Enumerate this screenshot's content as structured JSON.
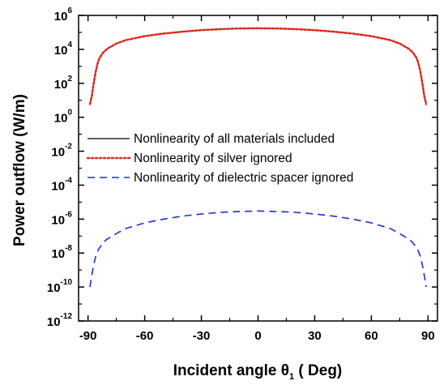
{
  "chart_data": {
    "type": "line",
    "x_axis": {
      "label_main": "Incident angle θ",
      "label_sub": "1",
      "label_unit": " ( Deg)",
      "range": [
        -95,
        95
      ],
      "ticks": [
        -90,
        -60,
        -30,
        0,
        30,
        60,
        90
      ],
      "tick_labels": [
        "-90",
        "-60",
        "-30",
        "0",
        "30",
        "60",
        "90"
      ]
    },
    "y_axis": {
      "label": "Power outflow (W/m)",
      "scale": "log",
      "range_exponent": [
        -12,
        6
      ],
      "ticks_exponent": [
        -12,
        -10,
        -8,
        -6,
        -4,
        -2,
        0,
        2,
        4,
        6
      ],
      "tick_labels": [
        {
          "base": "10",
          "exp": "-12"
        },
        {
          "base": "10",
          "exp": "-10"
        },
        {
          "base": "10",
          "exp": "-8"
        },
        {
          "base": "10",
          "exp": "-6"
        },
        {
          "base": "10",
          "exp": "-4"
        },
        {
          "base": "10",
          "exp": "-2"
        },
        {
          "base": "10",
          "exp": "0"
        },
        {
          "base": "10",
          "exp": "2"
        },
        {
          "base": "10",
          "exp": "4"
        },
        {
          "base": "10",
          "exp": "6"
        }
      ]
    },
    "grid": false,
    "legend_position": "middle-left",
    "series": [
      {
        "name": "Nonlinearity of all materials included",
        "color": "#000000",
        "style": "solid",
        "x": [
          -89,
          -88,
          -87,
          -86,
          -85,
          -84,
          -82,
          -80,
          -75,
          -70,
          -60,
          -50,
          -40,
          -30,
          -20,
          -10,
          0,
          10,
          20,
          30,
          40,
          50,
          60,
          70,
          75,
          80,
          82,
          84,
          85,
          86,
          87,
          88,
          89
        ],
        "y": [
          6,
          18,
          100,
          450,
          1400,
          3000,
          6500,
          10500,
          22000,
          35000,
          60000,
          85000,
          110000,
          135000,
          155000,
          170000,
          175000,
          170000,
          155000,
          135000,
          110000,
          85000,
          60000,
          35000,
          22000,
          10500,
          6500,
          3000,
          1400,
          450,
          100,
          18,
          6
        ]
      },
      {
        "name": "Nonlinearity of silver ignored",
        "color": "#e8291c",
        "style": "dotted",
        "x": [
          -89,
          -88,
          -87,
          -86,
          -85,
          -84,
          -82,
          -80,
          -75,
          -70,
          -60,
          -50,
          -40,
          -30,
          -20,
          -10,
          0,
          10,
          20,
          30,
          40,
          50,
          60,
          70,
          75,
          80,
          82,
          84,
          85,
          86,
          87,
          88,
          89
        ],
        "y": [
          6,
          18,
          100,
          450,
          1400,
          3000,
          6500,
          10500,
          22000,
          35000,
          60000,
          85000,
          110000,
          135000,
          155000,
          170000,
          175000,
          170000,
          155000,
          135000,
          110000,
          85000,
          60000,
          35000,
          22000,
          10500,
          6500,
          3000,
          1400,
          450,
          100,
          18,
          6
        ]
      },
      {
        "name": "Nonlinearity of dielectric spacer ignored",
        "color": "#1b2fd6",
        "style": "dashed",
        "x": [
          -89,
          -88,
          -87,
          -86,
          -85,
          -84,
          -82,
          -80,
          -75,
          -70,
          -60,
          -50,
          -40,
          -30,
          -20,
          -10,
          0,
          10,
          20,
          30,
          40,
          50,
          60,
          70,
          75,
          80,
          82,
          84,
          85,
          86,
          87,
          88,
          89
        ],
        "y": [
          1e-10,
          5e-10,
          2e-09,
          6e-09,
          1.2e-08,
          2e-08,
          4e-08,
          6.5e-08,
          1.4e-07,
          2.8e-07,
          6e-07,
          1e-06,
          1.5e-06,
          2e-06,
          2.5e-06,
          2.8e-06,
          3e-06,
          2.8e-06,
          2.5e-06,
          2e-06,
          1.5e-06,
          1e-06,
          6e-07,
          2.8e-07,
          1.4e-07,
          6.5e-08,
          4e-08,
          2e-08,
          1.2e-08,
          6e-09,
          2e-09,
          5e-10,
          1e-10
        ]
      }
    ]
  }
}
